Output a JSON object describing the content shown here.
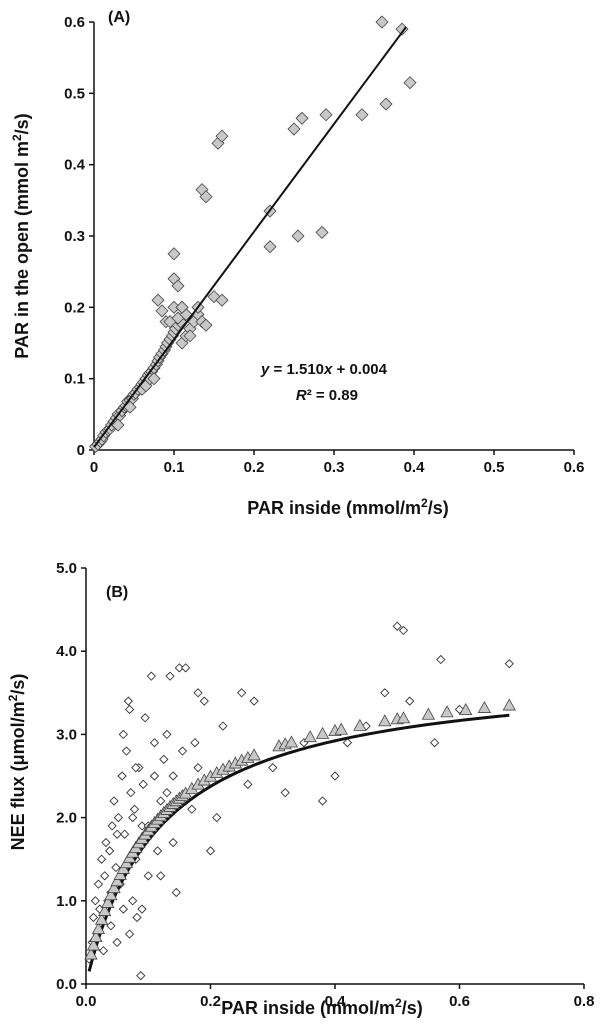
{
  "chart_data": [
    {
      "type": "scatter",
      "panel_label": "(A)",
      "xlabel": {
        "pre": "PAR inside (mmol/m",
        "sup": "2",
        "post": "/s)"
      },
      "ylabel": {
        "pre": "PAR in the open (mmol m",
        "sup": "2",
        "post": "/s)"
      },
      "xlim": [
        0,
        0.6
      ],
      "ylim": [
        0,
        0.6
      ],
      "xticks": [
        "0",
        "0.1",
        "0.2",
        "0.3",
        "0.4",
        "0.5",
        "0.6"
      ],
      "yticks": [
        "0",
        "0.1",
        "0.2",
        "0.3",
        "0.4",
        "0.5",
        "0.6"
      ],
      "marker": "diamond",
      "marker_color": "#c8c8c8",
      "points": [
        [
          0.002,
          0.005
        ],
        [
          0.005,
          0.008
        ],
        [
          0.008,
          0.012
        ],
        [
          0.01,
          0.015
        ],
        [
          0.012,
          0.02
        ],
        [
          0.015,
          0.025
        ],
        [
          0.018,
          0.028
        ],
        [
          0.02,
          0.03
        ],
        [
          0.022,
          0.035
        ],
        [
          0.025,
          0.04
        ],
        [
          0.028,
          0.045
        ],
        [
          0.03,
          0.05
        ],
        [
          0.032,
          0.048
        ],
        [
          0.035,
          0.055
        ],
        [
          0.038,
          0.06
        ],
        [
          0.04,
          0.062
        ],
        [
          0.042,
          0.068
        ],
        [
          0.045,
          0.07
        ],
        [
          0.048,
          0.072
        ],
        [
          0.05,
          0.078
        ],
        [
          0.052,
          0.08
        ],
        [
          0.055,
          0.085
        ],
        [
          0.058,
          0.088
        ],
        [
          0.06,
          0.092
        ],
        [
          0.062,
          0.095
        ],
        [
          0.065,
          0.1
        ],
        [
          0.068,
          0.105
        ],
        [
          0.07,
          0.108
        ],
        [
          0.072,
          0.11
        ],
        [
          0.075,
          0.115
        ],
        [
          0.078,
          0.12
        ],
        [
          0.08,
          0.125
        ],
        [
          0.082,
          0.13
        ],
        [
          0.085,
          0.135
        ],
        [
          0.088,
          0.14
        ],
        [
          0.09,
          0.145
        ],
        [
          0.092,
          0.15
        ],
        [
          0.095,
          0.155
        ],
        [
          0.098,
          0.16
        ],
        [
          0.1,
          0.165
        ],
        [
          0.102,
          0.17
        ],
        [
          0.105,
          0.175
        ],
        [
          0.108,
          0.18
        ],
        [
          0.11,
          0.15
        ],
        [
          0.115,
          0.16
        ],
        [
          0.12,
          0.17
        ],
        [
          0.125,
          0.18
        ],
        [
          0.13,
          0.19
        ],
        [
          0.135,
          0.18
        ],
        [
          0.14,
          0.175
        ],
        [
          0.085,
          0.195
        ],
        [
          0.09,
          0.18
        ],
        [
          0.095,
          0.18
        ],
        [
          0.1,
          0.2
        ],
        [
          0.105,
          0.185
        ],
        [
          0.11,
          0.2
        ],
        [
          0.115,
          0.19
        ],
        [
          0.08,
          0.21
        ],
        [
          0.1,
          0.275
        ],
        [
          0.1,
          0.24
        ],
        [
          0.105,
          0.23
        ],
        [
          0.11,
          0.2
        ],
        [
          0.135,
          0.365
        ],
        [
          0.14,
          0.355
        ],
        [
          0.155,
          0.43
        ],
        [
          0.16,
          0.44
        ],
        [
          0.15,
          0.215
        ],
        [
          0.16,
          0.21
        ],
        [
          0.12,
          0.16
        ],
        [
          0.13,
          0.2
        ],
        [
          0.22,
          0.335
        ],
        [
          0.22,
          0.285
        ],
        [
          0.25,
          0.45
        ],
        [
          0.26,
          0.465
        ],
        [
          0.255,
          0.3
        ],
        [
          0.285,
          0.305
        ],
        [
          0.29,
          0.47
        ],
        [
          0.335,
          0.47
        ],
        [
          0.36,
          0.6
        ],
        [
          0.365,
          0.485
        ],
        [
          0.385,
          0.59
        ],
        [
          0.395,
          0.515
        ],
        [
          0.03,
          0.035
        ],
        [
          0.045,
          0.06
        ],
        [
          0.06,
          0.085
        ],
        [
          0.065,
          0.09
        ],
        [
          0.07,
          0.1
        ],
        [
          0.075,
          0.1
        ]
      ],
      "fit": {
        "slope": 1.51,
        "intercept": 0.004,
        "x_range": [
          0,
          0.39
        ]
      },
      "equation_line1": {
        "y": "y",
        "mid": " = 1.510",
        "x": "x",
        "post": " + 0.004"
      },
      "equation_line2": {
        "r": "R",
        "post": "² = 0.89"
      }
    },
    {
      "type": "scatter",
      "panel_label": "(B)",
      "xlabel": {
        "pre": "PAR inside (mmol/m",
        "sup": "2",
        "post": "/s)"
      },
      "ylabel": {
        "pre": "NEE flux (μmol/m",
        "sup": "2",
        "post": "/s)"
      },
      "xlim": [
        0,
        0.8
      ],
      "ylim": [
        0,
        5.0
      ],
      "xticks": [
        "0.0",
        "0.2",
        "0.4",
        "0.6",
        "0.8"
      ],
      "yticks": [
        "0.0",
        "1.0",
        "2.0",
        "3.0",
        "4.0",
        "5.0"
      ],
      "observed": {
        "marker": "open-diamond",
        "points": [
          [
            0.005,
            0.3
          ],
          [
            0.01,
            0.5
          ],
          [
            0.012,
            0.8
          ],
          [
            0.015,
            1.0
          ],
          [
            0.018,
            0.6
          ],
          [
            0.02,
            1.2
          ],
          [
            0.022,
            0.9
          ],
          [
            0.025,
            1.5
          ],
          [
            0.028,
            0.4
          ],
          [
            0.03,
            1.3
          ],
          [
            0.032,
            1.7
          ],
          [
            0.035,
            1.0
          ],
          [
            0.038,
            1.6
          ],
          [
            0.04,
            0.7
          ],
          [
            0.042,
            1.9
          ],
          [
            0.045,
            2.2
          ],
          [
            0.048,
            1.4
          ],
          [
            0.05,
            0.5
          ],
          [
            0.052,
            2.0
          ],
          [
            0.055,
            1.2
          ],
          [
            0.058,
            2.5
          ],
          [
            0.06,
            3.0
          ],
          [
            0.062,
            1.8
          ],
          [
            0.065,
            2.8
          ],
          [
            0.068,
            3.4
          ],
          [
            0.07,
            3.3
          ],
          [
            0.072,
            2.3
          ],
          [
            0.075,
            1.0
          ],
          [
            0.078,
            2.1
          ],
          [
            0.08,
            1.5
          ],
          [
            0.082,
            0.8
          ],
          [
            0.085,
            2.6
          ],
          [
            0.088,
            0.1
          ],
          [
            0.09,
            1.9
          ],
          [
            0.092,
            2.4
          ],
          [
            0.095,
            3.2
          ],
          [
            0.1,
            1.3
          ],
          [
            0.105,
            3.7
          ],
          [
            0.11,
            2.9
          ],
          [
            0.115,
            1.6
          ],
          [
            0.12,
            2.2
          ],
          [
            0.125,
            2.7
          ],
          [
            0.13,
            3.0
          ],
          [
            0.135,
            3.7
          ],
          [
            0.14,
            2.5
          ],
          [
            0.145,
            1.1
          ],
          [
            0.15,
            3.8
          ],
          [
            0.155,
            2.8
          ],
          [
            0.16,
            3.8
          ],
          [
            0.17,
            2.1
          ],
          [
            0.175,
            2.9
          ],
          [
            0.18,
            3.5
          ],
          [
            0.19,
            3.4
          ],
          [
            0.2,
            1.6
          ],
          [
            0.21,
            2.0
          ],
          [
            0.22,
            3.1
          ],
          [
            0.23,
            2.6
          ],
          [
            0.25,
            3.5
          ],
          [
            0.26,
            2.4
          ],
          [
            0.27,
            3.4
          ],
          [
            0.3,
            2.6
          ],
          [
            0.32,
            2.3
          ],
          [
            0.35,
            2.9
          ],
          [
            0.38,
            2.2
          ],
          [
            0.4,
            2.5
          ],
          [
            0.42,
            2.9
          ],
          [
            0.45,
            3.1
          ],
          [
            0.48,
            3.5
          ],
          [
            0.5,
            4.3
          ],
          [
            0.51,
            4.25
          ],
          [
            0.52,
            3.4
          ],
          [
            0.56,
            2.9
          ],
          [
            0.57,
            3.9
          ],
          [
            0.6,
            3.3
          ],
          [
            0.68,
            3.85
          ],
          [
            0.04,
            1.1
          ],
          [
            0.05,
            1.8
          ],
          [
            0.06,
            0.9
          ],
          [
            0.065,
            1.4
          ],
          [
            0.07,
            0.6
          ],
          [
            0.075,
            2.0
          ],
          [
            0.08,
            2.6
          ],
          [
            0.09,
            0.9
          ],
          [
            0.1,
            1.9
          ],
          [
            0.11,
            2.5
          ],
          [
            0.12,
            1.3
          ],
          [
            0.13,
            2.3
          ],
          [
            0.14,
            1.7
          ],
          [
            0.16,
            2.2
          ],
          [
            0.18,
            2.6
          ]
        ]
      },
      "modeled": {
        "marker": "triangle",
        "marker_color": "#c8c8c8",
        "amax": 3.8,
        "k": 0.12,
        "x_values": [
          0.008,
          0.012,
          0.016,
          0.02,
          0.025,
          0.03,
          0.035,
          0.04,
          0.045,
          0.05,
          0.055,
          0.06,
          0.065,
          0.07,
          0.075,
          0.08,
          0.085,
          0.09,
          0.095,
          0.1,
          0.105,
          0.11,
          0.115,
          0.12,
          0.125,
          0.13,
          0.135,
          0.14,
          0.145,
          0.15,
          0.155,
          0.16,
          0.17,
          0.18,
          0.19,
          0.2,
          0.21,
          0.22,
          0.23,
          0.24,
          0.25,
          0.26,
          0.27,
          0.31,
          0.32,
          0.33,
          0.36,
          0.38,
          0.4,
          0.41,
          0.44,
          0.48,
          0.5,
          0.51,
          0.55,
          0.58,
          0.61,
          0.64,
          0.68
        ]
      },
      "fit_curve": {
        "amax": 3.8,
        "k": 0.12,
        "x_range": [
          0.005,
          0.68
        ]
      }
    }
  ]
}
